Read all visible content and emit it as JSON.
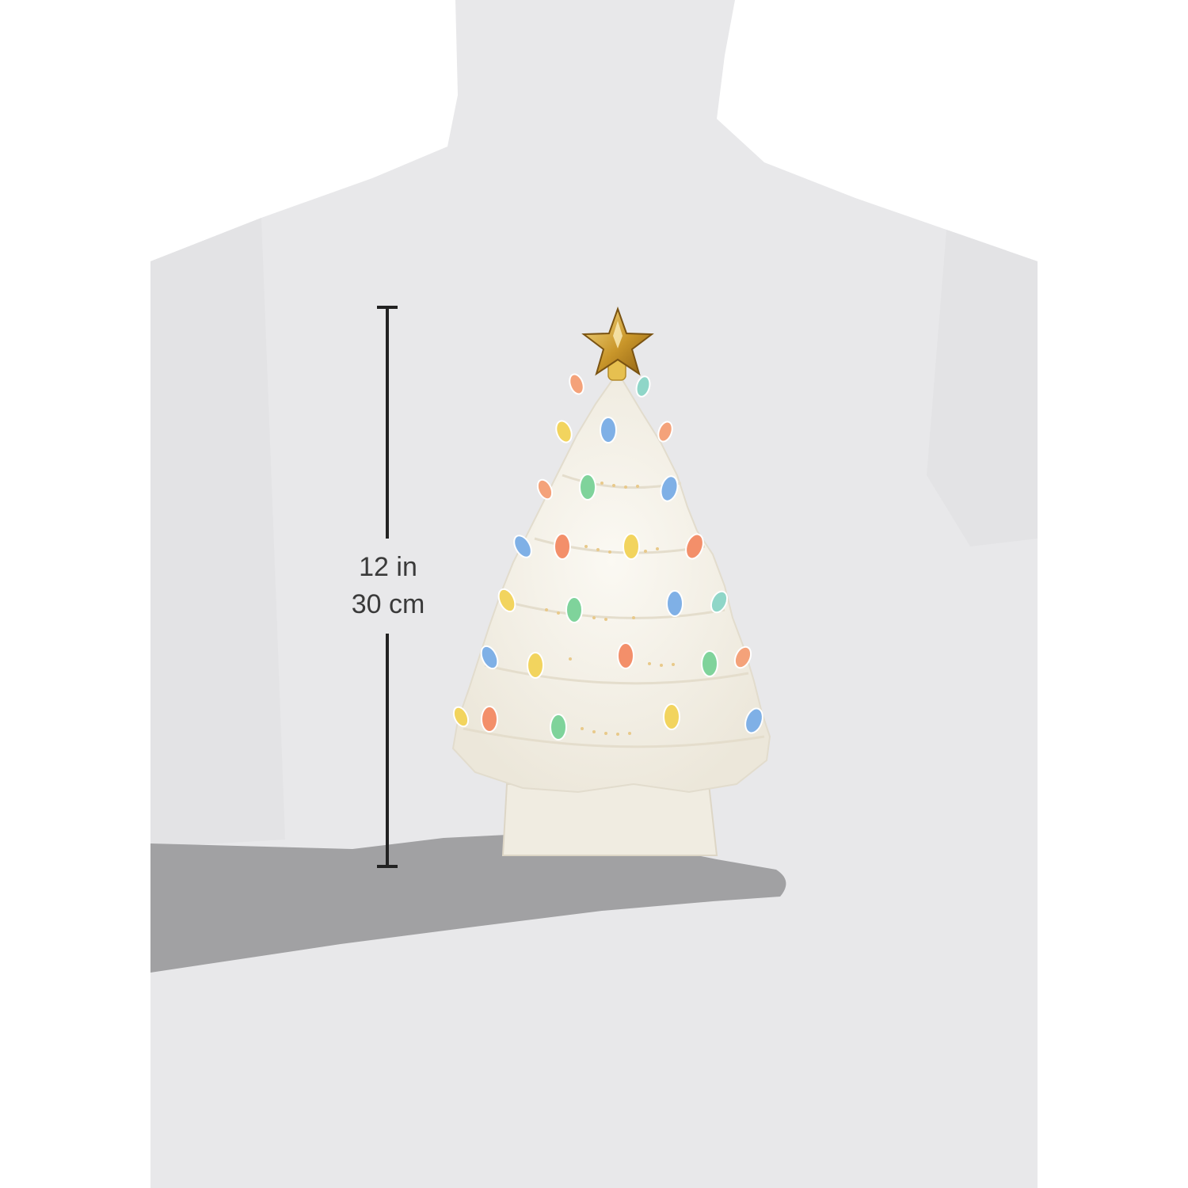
{
  "measurement": {
    "height_in": "12 in",
    "height_cm": "30 cm"
  },
  "colors": {
    "silhouette": "#e8e8ea",
    "hand": "#a1a1a3",
    "dimension_line": "#222222",
    "tree": "#f6f3ea",
    "star": "#c99a2e"
  },
  "bulb_colors": [
    "#f4a27a",
    "#7fb0e6",
    "#f2d45e",
    "#7fd39b",
    "#f38f6a",
    "#8fd6c8"
  ]
}
